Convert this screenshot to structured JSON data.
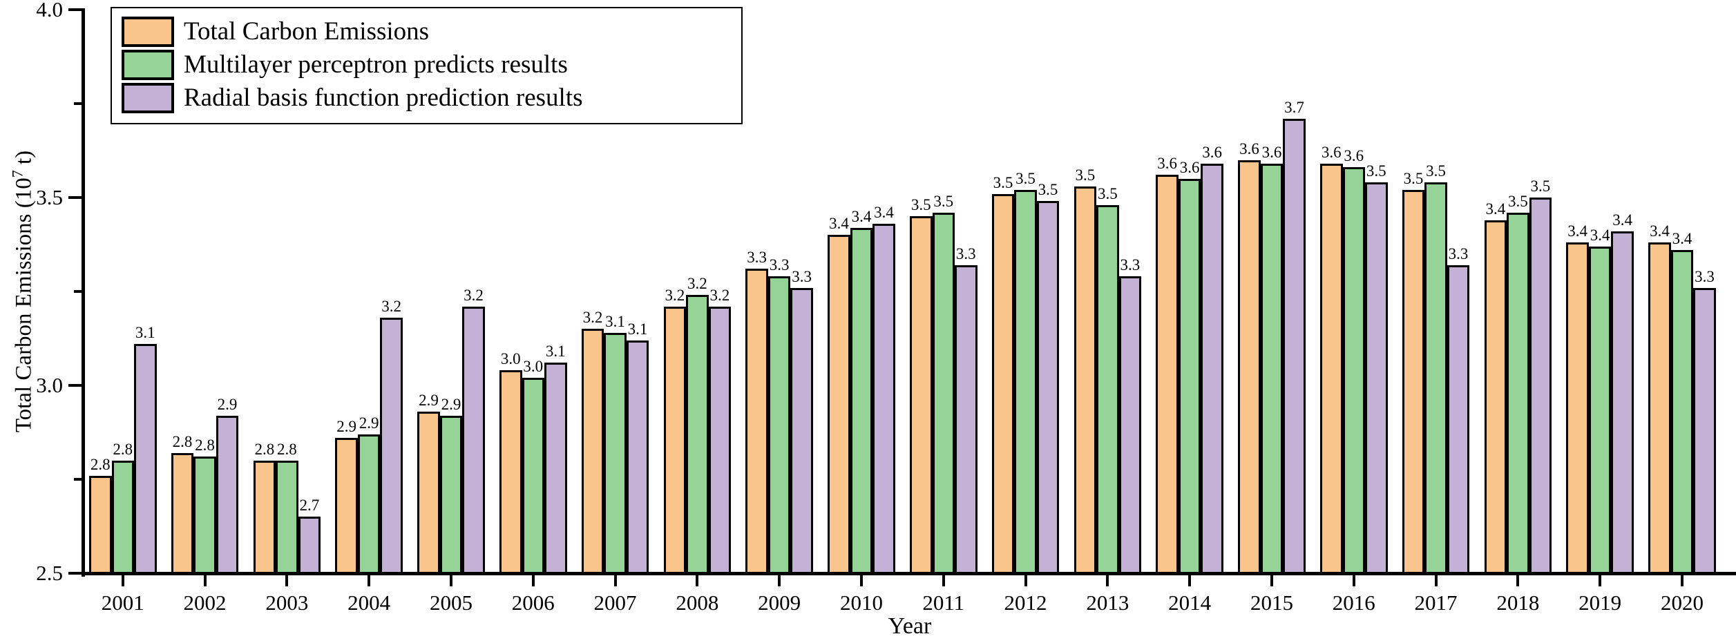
{
  "chart_data": {
    "type": "bar",
    "title": "",
    "xlabel": "Year",
    "ylabel": {
      "prefix": "Total Carbon Emissions (10",
      "sup": "7",
      "suffix": " t)"
    },
    "categories": [
      "2001",
      "2002",
      "2003",
      "2004",
      "2005",
      "2006",
      "2007",
      "2008",
      "2009",
      "2010",
      "2011",
      "2012",
      "2013",
      "2014",
      "2015",
      "2016",
      "2017",
      "2018",
      "2019",
      "2020"
    ],
    "series": [
      {
        "name": "Total Carbon Emissions",
        "color": "#FAC58D",
        "values": [
          2.76,
          2.82,
          2.8,
          2.86,
          2.93,
          3.04,
          3.15,
          3.21,
          3.31,
          3.4,
          3.45,
          3.51,
          3.53,
          3.56,
          3.6,
          3.59,
          3.52,
          3.44,
          3.38,
          3.38
        ],
        "labels": [
          "2.8",
          "2.8",
          "2.8",
          "2.9",
          "2.9",
          "3.0",
          "3.2",
          "3.2",
          "3.3",
          "3.4",
          "3.5",
          "3.5",
          "3.5",
          "3.6",
          "3.6",
          "3.6",
          "3.5",
          "3.4",
          "3.4",
          "3.4"
        ]
      },
      {
        "name": "Multilayer perceptron predicts results",
        "color": "#96D396",
        "values": [
          2.8,
          2.81,
          2.8,
          2.87,
          2.92,
          3.02,
          3.14,
          3.24,
          3.29,
          3.42,
          3.46,
          3.52,
          3.48,
          3.55,
          3.59,
          3.58,
          3.54,
          3.46,
          3.37,
          3.36
        ],
        "labels": [
          "2.8",
          "2.8",
          "2.8",
          "2.9",
          "2.9",
          "3.0",
          "3.1",
          "3.2",
          "3.3",
          "3.4",
          "3.5",
          "3.5",
          "3.5",
          "3.6",
          "3.6",
          "3.6",
          "3.5",
          "3.5",
          "3.4",
          "3.4"
        ]
      },
      {
        "name": "Radial basis function prediction results",
        "color": "#C3B1D6",
        "values": [
          3.11,
          2.92,
          2.65,
          3.18,
          3.21,
          3.06,
          3.12,
          3.21,
          3.26,
          3.43,
          3.32,
          3.49,
          3.29,
          3.59,
          3.71,
          3.54,
          3.32,
          3.5,
          3.41,
          3.26
        ],
        "labels": [
          "3.1",
          "2.9",
          "2.7",
          "3.2",
          "3.2",
          "3.1",
          "3.1",
          "3.2",
          "3.3",
          "3.4",
          "3.3",
          "3.5",
          "3.3",
          "3.6",
          "3.7",
          "3.5",
          "3.3",
          "3.5",
          "3.4",
          "3.3"
        ]
      }
    ],
    "ylim": [
      2.5,
      4.0
    ],
    "yticks": [
      {
        "value": 2.5,
        "label": "2.5"
      },
      {
        "value": 3.0,
        "label": "3.0"
      },
      {
        "value": 3.5,
        "label": "3.5"
      },
      {
        "value": 4.0,
        "label": "4.0"
      }
    ],
    "yticks_minor": [
      2.75,
      3.25,
      3.75
    ],
    "grid": "off",
    "legend_position": "upper-left",
    "axis_color": "#000000",
    "bar_edge_color": "#000000"
  }
}
